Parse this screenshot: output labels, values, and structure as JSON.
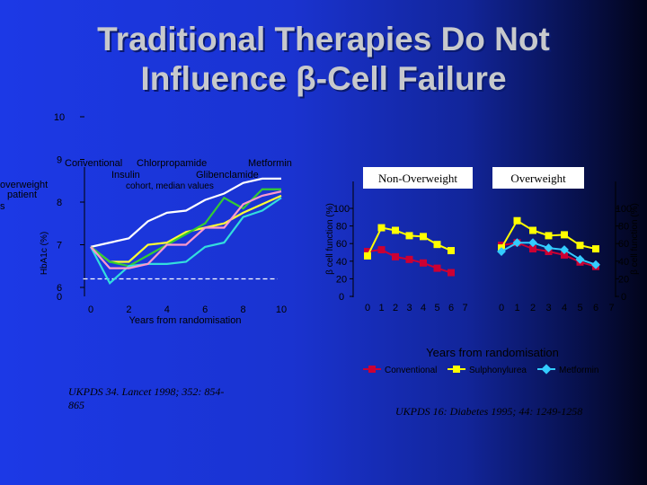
{
  "slide": {
    "title_line1": "Traditional Therapies Do Not",
    "title_line2": "Influence β-Cell Failure"
  },
  "left_panel": {
    "cut_labels": [
      "overweight",
      "patient",
      "s"
    ],
    "legend_labels": [
      "Conventional",
      "Chlorpropamide",
      "Metformin",
      "Insulin",
      "Glibenclamide"
    ],
    "subnote": "cohort, median values",
    "ylabel": "HbA1c (%)",
    "xlabel": "Years from randomisation",
    "citation_line1": "UKPDS 34. Lancet 1998; 352: 854-",
    "citation_line2": "865"
  },
  "right_panel": {
    "panel_titles": [
      "Non-Overweight",
      "Overweight"
    ],
    "ylabel_left": "β cell function (%)",
    "ylabel_right": "β cell function (%)",
    "xlabel": "Years from randomisation",
    "legend_labels": [
      "Conventional",
      "Sulphonylurea",
      "Metformin"
    ],
    "citation": "UKPDS 16: Diabetes 1995; 44: 1249-1258"
  },
  "colors": {
    "conventional_hba1c": "#ffffff",
    "chlorpropamide": "#ffff33",
    "metformin_hba1c": "#33cc33",
    "insulin": "#33dddd",
    "glibenclamide": "#ff99cc",
    "conventional_beta": "#cc0033",
    "sulphonylurea": "#ffff00",
    "metformin_beta": "#33ccff",
    "reference_line": "#ffffff"
  },
  "chart_data": [
    {
      "type": "line",
      "ylabel": "HbA1c (%)",
      "xlabel": "Years from randomisation",
      "x_ticks": [
        "0",
        "2",
        "4",
        "6",
        "8",
        "10"
      ],
      "y_ticks": [
        "6",
        "7",
        "8",
        "9",
        "10"
      ],
      "ylim": [
        6,
        10
      ],
      "xlim": [
        0,
        10
      ],
      "y_axis_extra_label": "0",
      "reference_line_y": 6.2,
      "series": [
        {
          "name": "Conventional",
          "x": [
            0,
            1,
            2,
            3,
            4,
            5,
            6,
            7,
            8,
            9,
            10
          ],
          "values": [
            6.95,
            7.05,
            7.15,
            7.55,
            7.75,
            7.8,
            8.05,
            8.2,
            8.45,
            8.55,
            8.55
          ]
        },
        {
          "name": "Chlorpropamide",
          "x": [
            0,
            1,
            2,
            3,
            4,
            5,
            6,
            7,
            8,
            9,
            10
          ],
          "values": [
            6.95,
            6.6,
            6.6,
            7.0,
            7.05,
            7.3,
            7.4,
            7.5,
            7.75,
            7.95,
            8.15
          ]
        },
        {
          "name": "Metformin",
          "x": [
            0,
            1,
            2,
            3,
            4,
            5,
            6,
            7,
            8,
            9,
            10
          ],
          "values": [
            6.95,
            6.6,
            6.5,
            6.75,
            7.0,
            7.25,
            7.5,
            8.1,
            7.85,
            8.3,
            8.3
          ]
        },
        {
          "name": "Insulin",
          "x": [
            0,
            1,
            2,
            3,
            4,
            5,
            6,
            7,
            8,
            9,
            10
          ],
          "values": [
            6.95,
            6.1,
            6.5,
            6.55,
            6.55,
            6.6,
            6.95,
            7.05,
            7.65,
            7.8,
            8.1
          ]
        },
        {
          "name": "Glibenclamide",
          "x": [
            0,
            1,
            2,
            3,
            4,
            5,
            6,
            7,
            8,
            9,
            10
          ],
          "values": [
            6.95,
            6.45,
            6.45,
            6.55,
            7.0,
            7.0,
            7.4,
            7.4,
            7.95,
            8.15,
            8.25
          ]
        }
      ]
    },
    {
      "type": "line",
      "title": "Non-Overweight",
      "ylabel": "β cell function (%)",
      "xlabel": "Years from randomisation",
      "x_ticks": [
        "0",
        "1",
        "2",
        "3",
        "4",
        "5",
        "6",
        "7"
      ],
      "y_ticks": [
        "0",
        "20",
        "40",
        "60",
        "80",
        "100"
      ],
      "ylim": [
        0,
        100
      ],
      "xlim": [
        0,
        7
      ],
      "series": [
        {
          "name": "Conventional",
          "x": [
            0,
            1,
            2,
            3,
            4,
            5,
            6
          ],
          "values": [
            51,
            53,
            45,
            42,
            38,
            32,
            27
          ]
        },
        {
          "name": "Sulphonylurea",
          "x": [
            0,
            1,
            2,
            3,
            4,
            5,
            6
          ],
          "values": [
            46,
            78,
            75,
            69,
            68,
            59,
            52
          ]
        }
      ]
    },
    {
      "type": "line",
      "title": "Overweight",
      "ylabel": "β cell function (%)",
      "xlabel": "Years from randomisation",
      "x_ticks": [
        "0",
        "1",
        "2",
        "3",
        "4",
        "5",
        "6",
        "7"
      ],
      "y_ticks": [
        "0",
        "20",
        "40",
        "60",
        "80",
        "100"
      ],
      "ylim": [
        0,
        100
      ],
      "xlim": [
        0,
        7
      ],
      "series": [
        {
          "name": "Conventional",
          "x": [
            0,
            1,
            2,
            3,
            4,
            5,
            6
          ],
          "values": [
            58,
            61,
            54,
            51,
            47,
            39,
            34
          ]
        },
        {
          "name": "Sulphonylurea",
          "x": [
            0,
            1,
            2,
            3,
            4,
            5,
            6
          ],
          "values": [
            55,
            86,
            75,
            69,
            70,
            58,
            54
          ]
        },
        {
          "name": "Metformin",
          "x": [
            0,
            1,
            2,
            3,
            4,
            5,
            6
          ],
          "values": [
            51,
            61,
            61,
            55,
            53,
            42,
            36
          ]
        }
      ]
    }
  ]
}
